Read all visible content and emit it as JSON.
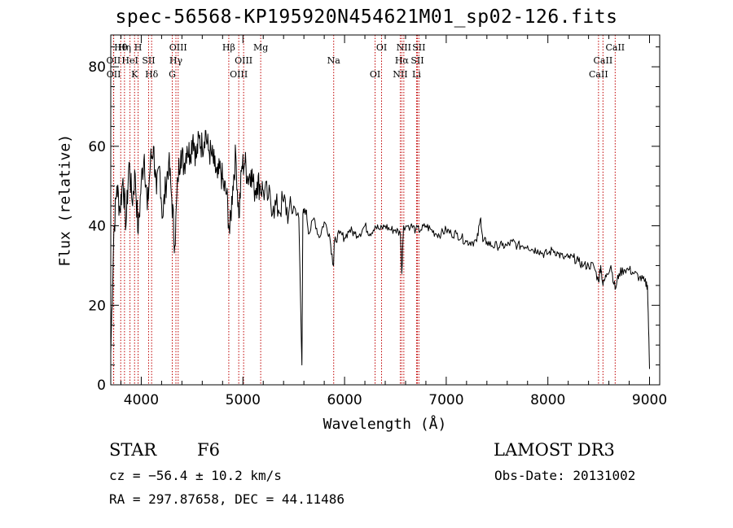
{
  "title": "spec-56568-KP195920N454621M01_sp02-126.fits",
  "colors": {
    "axis": "#000000",
    "spectrum": "#000000",
    "line_markers": "#c00000"
  },
  "chart_data": {
    "type": "line",
    "title": "spec-56568-KP195920N454621M01_sp02-126.fits",
    "xlabel": "Wavelength (Å)",
    "ylabel": "Flux (relative)",
    "xlim": [
      3700,
      9100
    ],
    "ylim": [
      0,
      88
    ],
    "xticks": [
      4000,
      5000,
      6000,
      7000,
      8000,
      9000
    ],
    "yticks": [
      0,
      20,
      40,
      60,
      80
    ],
    "series": [
      {
        "name": "spectrum",
        "x": [
          3700,
          3730,
          3760,
          3790,
          3820,
          3850,
          3880,
          3910,
          3940,
          3970,
          4000,
          4030,
          4060,
          4090,
          4120,
          4150,
          4180,
          4210,
          4240,
          4270,
          4300,
          4330,
          4360,
          4390,
          4420,
          4450,
          4480,
          4510,
          4540,
          4570,
          4600,
          4630,
          4660,
          4690,
          4720,
          4750,
          4780,
          4810,
          4840,
          4870,
          4900,
          4930,
          4960,
          4990,
          5020,
          5050,
          5080,
          5110,
          5140,
          5170,
          5200,
          5250,
          5300,
          5350,
          5400,
          5450,
          5500,
          5550,
          5580,
          5590,
          5620,
          5650,
          5700,
          5750,
          5800,
          5850,
          5890,
          5900,
          5950,
          6000,
          6050,
          6100,
          6150,
          6200,
          6250,
          6300,
          6350,
          6400,
          6450,
          6500,
          6550,
          6563,
          6580,
          6650,
          6700,
          6750,
          6800,
          6850,
          6900,
          6950,
          7000,
          7050,
          7100,
          7150,
          7200,
          7250,
          7300,
          7340,
          7360,
          7400,
          7450,
          7500,
          7550,
          7600,
          7650,
          7700,
          7750,
          7800,
          7850,
          7900,
          7950,
          8000,
          8050,
          8100,
          8150,
          8200,
          8250,
          8300,
          8350,
          8400,
          8450,
          8498,
          8520,
          8542,
          8580,
          8620,
          8662,
          8700,
          8750,
          8800,
          8850,
          8900,
          8950,
          8980,
          9000
        ],
        "y": [
          8,
          38,
          50,
          44,
          52,
          40,
          56,
          46,
          53,
          38,
          51,
          58,
          44,
          56,
          60,
          48,
          55,
          42,
          50,
          56,
          47,
          35,
          52,
          59,
          55,
          60,
          58,
          63,
          57,
          62,
          60,
          64,
          59,
          58,
          55,
          52,
          54,
          50,
          48,
          38,
          50,
          58,
          42,
          55,
          56,
          52,
          54,
          49,
          51,
          50,
          49,
          47,
          45,
          44,
          46,
          43,
          45,
          42,
          5,
          43,
          44,
          38,
          42,
          37,
          41,
          38,
          30,
          36,
          38,
          37,
          39,
          38,
          38,
          40,
          38,
          40,
          39,
          40,
          39,
          39,
          38,
          28,
          40,
          40,
          39,
          39,
          40,
          39,
          38,
          38,
          39,
          38,
          38,
          37,
          36,
          36,
          36,
          42,
          36,
          36,
          35,
          35,
          35,
          35,
          36,
          35,
          35,
          35,
          34,
          34,
          33,
          33,
          34,
          33,
          32,
          32,
          32,
          31,
          30,
          30,
          30,
          26,
          30,
          25,
          28,
          30,
          24,
          28,
          29,
          29,
          28,
          27,
          26,
          25,
          4
        ]
      }
    ],
    "line_markers": [
      {
        "label": "Hθ",
        "wavelength": 3798
      },
      {
        "label": "OII",
        "wavelength": 3727
      },
      {
        "label": "OII",
        "wavelength": 3729
      },
      {
        "label": "Hη",
        "wavelength": 3835
      },
      {
        "label": "HeI",
        "wavelength": 3889
      },
      {
        "label": "K",
        "wavelength": 3934
      },
      {
        "label": "H",
        "wavelength": 3969
      },
      {
        "label": "SII",
        "wavelength": 4072
      },
      {
        "label": "Hδ",
        "wavelength": 4102
      },
      {
        "label": "OIII",
        "wavelength": 4363
      },
      {
        "label": "Hγ",
        "wavelength": 4341
      },
      {
        "label": "G",
        "wavelength": 4305
      },
      {
        "label": "Hβ",
        "wavelength": 4861
      },
      {
        "label": "OIII",
        "wavelength": 5007
      },
      {
        "label": "OIII",
        "wavelength": 4959
      },
      {
        "label": "Mg",
        "wavelength": 5175
      },
      {
        "label": "Na",
        "wavelength": 5893
      },
      {
        "label": "OI",
        "wavelength": 6300
      },
      {
        "label": "OI",
        "wavelength": 6364
      },
      {
        "label": "Hα",
        "wavelength": 6563
      },
      {
        "label": "NII",
        "wavelength": 6548
      },
      {
        "label": "NII",
        "wavelength": 6583
      },
      {
        "label": "SII",
        "wavelength": 6716
      },
      {
        "label": "Li",
        "wavelength": 6708
      },
      {
        "label": "SII",
        "wavelength": 6731
      },
      {
        "label": "CaII",
        "wavelength": 8542
      },
      {
        "label": "CaII",
        "wavelength": 8498
      },
      {
        "label": "CaII",
        "wavelength": 8662
      }
    ]
  },
  "info": {
    "class": "STAR",
    "subclass": "F6",
    "survey": "LAMOST DR3",
    "cz": "cz = −56.4 ± 10.2 km/s",
    "obs_date": "Obs-Date: 20131002",
    "radec": "RA = 297.87658, DEC =  44.11486"
  }
}
